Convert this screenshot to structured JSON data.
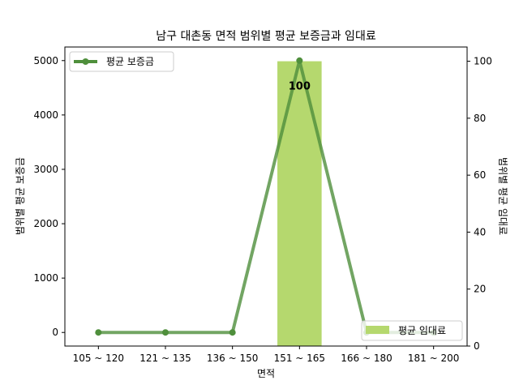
{
  "chart_data": {
    "type": "bar+line",
    "title": "남구 대촌동 면적 범위별 평균 보증금과 임대료",
    "xlabel": "면적",
    "ylabel_left": "범위별 평균 보증금",
    "ylabel_right": "범위별 평균 임대료",
    "categories": [
      "105 ~ 120",
      "121 ~ 135",
      "136 ~ 150",
      "151 ~ 165",
      "166 ~ 180",
      "181 ~ 200"
    ],
    "line_series": {
      "name": "평균 보증금",
      "values": [
        0,
        0,
        0,
        5000,
        0,
        0
      ],
      "color": "#4f8f3c",
      "axis": "left"
    },
    "bar_series": {
      "name": "평균 임대료",
      "values": [
        0,
        0,
        0,
        100,
        0,
        0
      ],
      "color": "#b5d86e",
      "axis": "right"
    },
    "data_labels": [
      {
        "category": "151 ~ 165",
        "text": "100"
      }
    ],
    "ylim_left": [
      -250,
      5250
    ],
    "yticks_left": [
      0,
      1000,
      2000,
      3000,
      4000,
      5000
    ],
    "ylim_right": [
      0,
      105
    ],
    "yticks_right": [
      0,
      20,
      40,
      60,
      80,
      100
    ],
    "grid": false,
    "legend_line_position": "top-left",
    "legend_bar_position": "bottom-right"
  }
}
